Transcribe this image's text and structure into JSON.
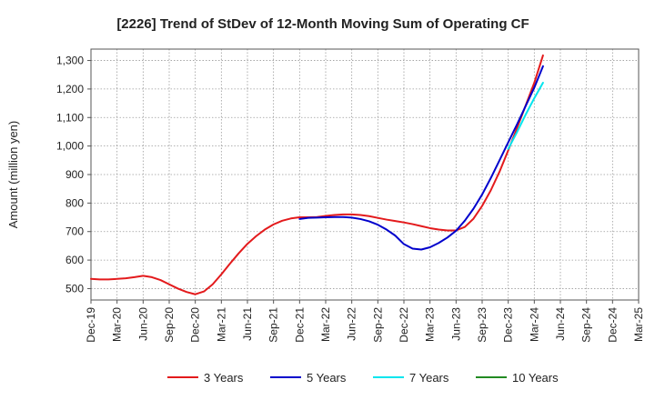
{
  "chart_data": {
    "type": "line",
    "title": "[2226]  Trend of StDev of 12-Month Moving Sum of Operating CF",
    "ylabel": "Amount (million yen)",
    "xlabel": "",
    "ylim": [
      460,
      1340
    ],
    "y_ticks": [
      500,
      600,
      700,
      800,
      900,
      1000,
      1100,
      1200,
      1300
    ],
    "y_tick_labels": [
      "500",
      "600",
      "700",
      "800",
      "900",
      "1,000",
      "1,100",
      "1,200",
      "1,300"
    ],
    "x_tick_labels": [
      "Dec-19",
      "Mar-20",
      "Jun-20",
      "Sep-20",
      "Dec-20",
      "Mar-21",
      "Jun-21",
      "Sep-21",
      "Dec-21",
      "Mar-22",
      "Jun-22",
      "Sep-22",
      "Dec-22",
      "Mar-23",
      "Jun-23",
      "Sep-23",
      "Dec-23",
      "Mar-24",
      "Jun-24",
      "Sep-24",
      "Dec-24",
      "Mar-25"
    ],
    "grid": true,
    "legend_position": "bottom",
    "series": [
      {
        "name": "3 Years",
        "color": "#e31a1c",
        "points": [
          [
            "Dec-19",
            534
          ],
          [
            "Jan-20",
            532
          ],
          [
            "Feb-20",
            532
          ],
          [
            "Mar-20",
            534
          ],
          [
            "Apr-20",
            536
          ],
          [
            "May-20",
            540
          ],
          [
            "Jun-20",
            545
          ],
          [
            "Jul-20",
            540
          ],
          [
            "Aug-20",
            530
          ],
          [
            "Sep-20",
            515
          ],
          [
            "Oct-20",
            500
          ],
          [
            "Nov-20",
            488
          ],
          [
            "Dec-20",
            480
          ],
          [
            "Jan-21",
            490
          ],
          [
            "Feb-21",
            515
          ],
          [
            "Mar-21",
            550
          ],
          [
            "Apr-21",
            588
          ],
          [
            "May-21",
            624
          ],
          [
            "Jun-21",
            657
          ],
          [
            "Jul-21",
            684
          ],
          [
            "Aug-21",
            707
          ],
          [
            "Sep-21",
            725
          ],
          [
            "Oct-21",
            738
          ],
          [
            "Nov-21",
            746
          ],
          [
            "Dec-21",
            750
          ],
          [
            "Jan-22",
            750
          ],
          [
            "Feb-22",
            751
          ],
          [
            "Mar-22",
            755
          ],
          [
            "Apr-22",
            758
          ],
          [
            "May-22",
            760
          ],
          [
            "Jun-22",
            760
          ],
          [
            "Jul-22",
            758
          ],
          [
            "Aug-22",
            754
          ],
          [
            "Sep-22",
            748
          ],
          [
            "Oct-22",
            742
          ],
          [
            "Nov-22",
            737
          ],
          [
            "Dec-22",
            732
          ],
          [
            "Jan-23",
            726
          ],
          [
            "Feb-23",
            719
          ],
          [
            "Mar-23",
            712
          ],
          [
            "Apr-23",
            707
          ],
          [
            "May-23",
            704
          ],
          [
            "Jun-23",
            704
          ],
          [
            "Jul-23",
            716
          ],
          [
            "Aug-23",
            745
          ],
          [
            "Sep-23",
            790
          ],
          [
            "Oct-23",
            845
          ],
          [
            "Nov-23",
            910
          ],
          [
            "Dec-23",
            985
          ],
          [
            "Jan-24",
            1062
          ],
          [
            "Feb-24",
            1142
          ],
          [
            "Mar-24",
            1222
          ],
          [
            "Apr-24",
            1318
          ]
        ]
      },
      {
        "name": "5 Years",
        "color": "#0000cc",
        "points": [
          [
            "Dec-21",
            744
          ],
          [
            "Jan-22",
            748
          ],
          [
            "Feb-22",
            749
          ],
          [
            "Mar-22",
            750
          ],
          [
            "Apr-22",
            751
          ],
          [
            "May-22",
            751
          ],
          [
            "Jun-22",
            749
          ],
          [
            "Jul-22",
            744
          ],
          [
            "Aug-22",
            736
          ],
          [
            "Sep-22",
            724
          ],
          [
            "Oct-22",
            707
          ],
          [
            "Nov-22",
            686
          ],
          [
            "Dec-22",
            656
          ],
          [
            "Jan-23",
            640
          ],
          [
            "Feb-23",
            637
          ],
          [
            "Mar-23",
            645
          ],
          [
            "Apr-23",
            660
          ],
          [
            "May-23",
            679
          ],
          [
            "Jun-23",
            703
          ],
          [
            "Jul-23",
            738
          ],
          [
            "Aug-23",
            780
          ],
          [
            "Sep-23",
            830
          ],
          [
            "Oct-23",
            888
          ],
          [
            "Nov-23",
            950
          ],
          [
            "Dec-23",
            1013
          ],
          [
            "Jan-24",
            1075
          ],
          [
            "Feb-24",
            1140
          ],
          [
            "Mar-24",
            1205
          ],
          [
            "Apr-24",
            1280
          ]
        ]
      },
      {
        "name": "7 Years",
        "color": "#00e5ee",
        "points": [
          [
            "Dec-23",
            990
          ],
          [
            "Jan-24",
            1048
          ],
          [
            "Feb-24",
            1110
          ],
          [
            "Mar-24",
            1168
          ],
          [
            "Apr-24",
            1222
          ]
        ]
      },
      {
        "name": "10 Years",
        "color": "#228b22",
        "points": []
      }
    ]
  }
}
